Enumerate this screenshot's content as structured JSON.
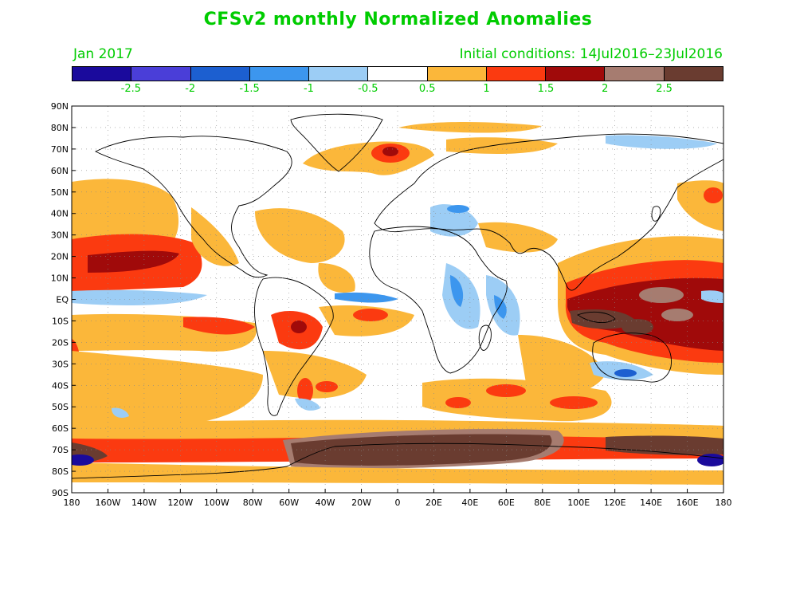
{
  "title": "CFSv2 monthly Normalized Anomalies",
  "valid_month": "Jan 2017",
  "initial_conditions": "Initial conditions: 14Jul2016–23Jul2016",
  "colorbar": {
    "colors": [
      "#1a0a9c",
      "#4a3ed8",
      "#1c5fd0",
      "#3c96ee",
      "#9ccdf5",
      "#ffffff",
      "#fbb73a",
      "#fb3a10",
      "#a00a0a",
      "#a67c70",
      "#6a3c30"
    ],
    "labels": [
      "-2.5",
      "-2",
      "-1.5",
      "-1",
      "-0.5",
      "0.5",
      "1",
      "1.5",
      "2",
      "2.5"
    ]
  },
  "map": {
    "lon_labels": [
      "180",
      "160W",
      "140W",
      "120W",
      "100W",
      "80W",
      "60W",
      "40W",
      "20W",
      "0",
      "20E",
      "40E",
      "60E",
      "80E",
      "100E",
      "120E",
      "140E",
      "160E",
      "180"
    ],
    "lat_labels": [
      "90N",
      "80N",
      "70N",
      "60N",
      "50N",
      "40N",
      "30N",
      "20N",
      "10N",
      "EQ",
      "10S",
      "20S",
      "30S",
      "40S",
      "50S",
      "60S",
      "70S",
      "80S",
      "90S"
    ]
  }
}
